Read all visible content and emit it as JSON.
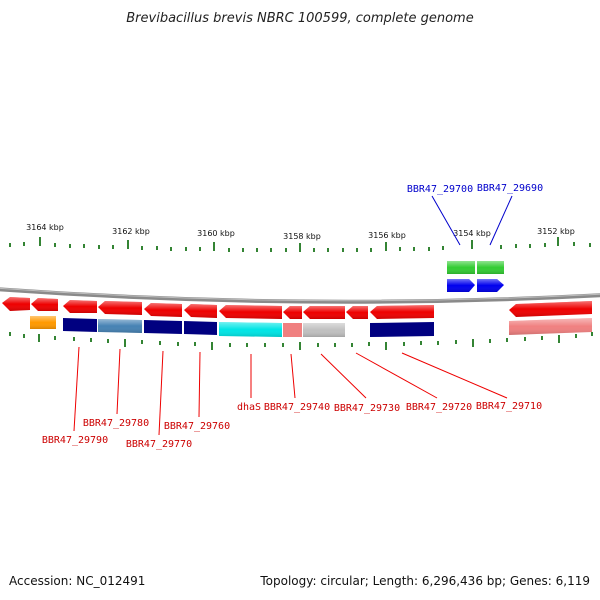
{
  "title": "Brevibacillus brevis NBRC 100599, complete genome",
  "accession_text": "Accession: NC_012491",
  "topology_text": "Topology: circular; Length: 6,296,436 bp; Genes: 6,119",
  "colors": {
    "red": "#ee0000",
    "orange": "#ff9900",
    "navy": "#000080",
    "steelblue": "#4682b4",
    "cyan": "#00e5e5",
    "pink": "#f08080",
    "gray": "#c0c0c0",
    "green": "#33cc33",
    "blue": "#0000ee",
    "tick": "#006600",
    "backbone": "#888888"
  },
  "kbp_labels": [
    "3164 kbp",
    "3162 kbp",
    "3160 kbp",
    "3158 kbp",
    "3156 kbp",
    "3154 kbp",
    "3152 kbp"
  ],
  "labels": {
    "BBR47_29700": "BBR47_29700",
    "BBR47_29690": "BBR47_29690",
    "BBR47_29790": "BBR47_29790",
    "BBR47_29780": "BBR47_29780",
    "BBR47_29770": "BBR47_29770",
    "BBR47_29760": "BBR47_29760",
    "dhaS": "dhaS",
    "BBR47_29740": "BBR47_29740",
    "BBR47_29730": "BBR47_29730",
    "BBR47_29720": "BBR47_29720",
    "BBR47_29710": "BBR47_29710"
  }
}
